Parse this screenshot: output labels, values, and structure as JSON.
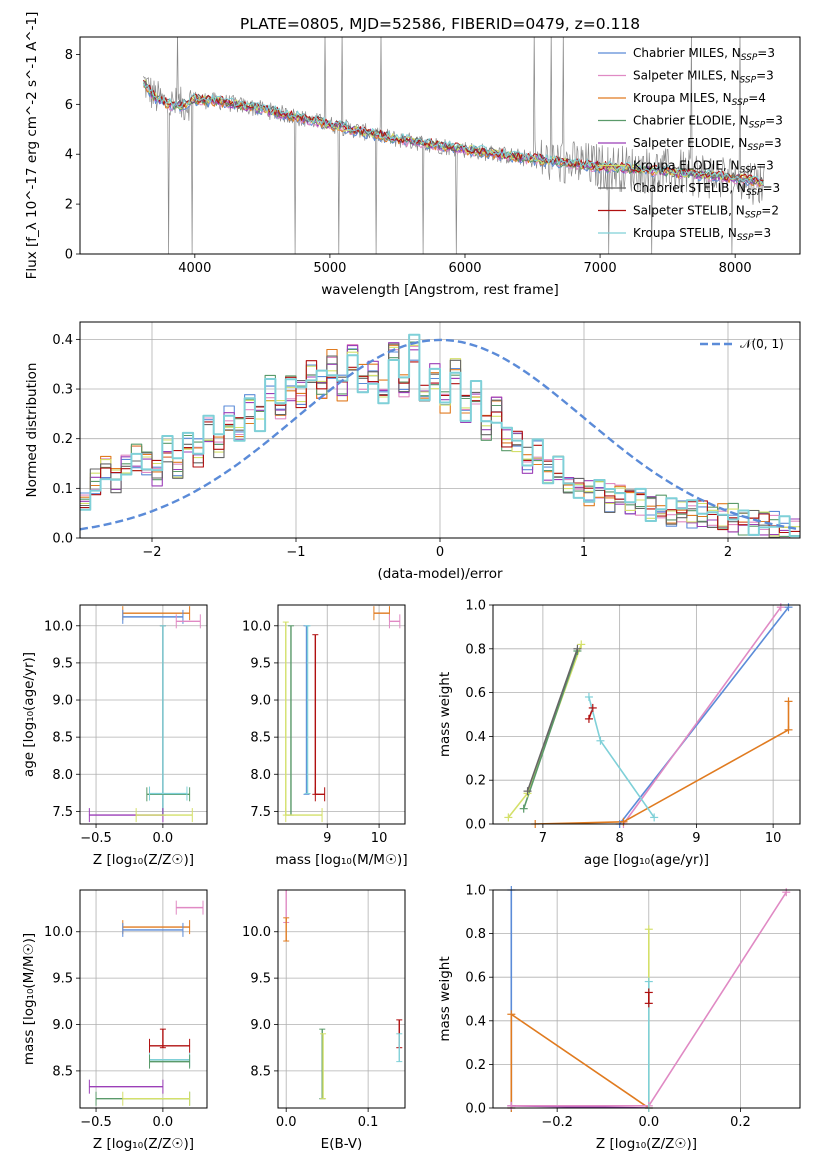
{
  "figure_title": "PLATE=0805, MJD=52586, FIBERID=0479, z=0.118",
  "colors": {
    "Chabrier MILES": "#5b8bd8",
    "Salpeter MILES": "#e08ac4",
    "Kroupa MILES": "#e07b20",
    "Chabrier ELODIE": "#5a9a6a",
    "Salpeter ELODIE": "#9b3fb8",
    "Kroupa ELODIE": "#d4e06a",
    "Chabrier STELIB": "#666666",
    "Salpeter STELIB": "#b01010",
    "Kroupa STELIB": "#7fd0d8"
  },
  "chart_data": [
    {
      "type": "line",
      "title": "PLATE=0805, MJD=52586, FIBERID=0479, z=0.118",
      "xlabel": "wavelength [Angstrom, rest frame]",
      "ylabel": "Flux [f_λ 10^-17 erg cm^-2 s^-1 A^-1]",
      "xlim": [
        3150,
        8480
      ],
      "ylim": [
        0,
        8.7
      ],
      "xticks": [
        4000,
        5000,
        6000,
        7000,
        8000
      ],
      "yticks": [
        0,
        2,
        4,
        6,
        8
      ],
      "grid": false,
      "legend_position": "top-right",
      "continuum": {
        "x": [
          3620,
          3700,
          3800,
          3900,
          4000,
          4200,
          4500,
          5000,
          5500,
          6000,
          6500,
          7000,
          7500,
          8000,
          8220
        ],
        "y": [
          6.9,
          6.3,
          6.0,
          5.95,
          6.2,
          6.1,
          5.8,
          5.2,
          4.6,
          4.2,
          3.8,
          3.5,
          3.3,
          3.05,
          2.85
        ]
      },
      "series": [
        {
          "name": "Chabrier MILES",
          "nssp": "3"
        },
        {
          "name": "Salpeter MILES",
          "nssp": "3"
        },
        {
          "name": "Kroupa MILES",
          "nssp": "4"
        },
        {
          "name": "Chabrier ELODIE",
          "nssp": "3"
        },
        {
          "name": "Salpeter ELODIE",
          "nssp": "3"
        },
        {
          "name": "Kroupa ELODIE",
          "nssp": "3"
        },
        {
          "name": "Chabrier STELIB",
          "nssp": "3"
        },
        {
          "name": "Salpeter STELIB",
          "nssp": "2"
        },
        {
          "name": "Kroupa STELIB",
          "nssp": "3"
        }
      ]
    },
    {
      "type": "line",
      "xlabel": "(data-model)/error",
      "ylabel": "Normed distribution",
      "xlim": [
        -2.5,
        2.5
      ],
      "ylim": [
        0,
        0.435
      ],
      "xticks": [
        -2,
        -1,
        0,
        1,
        2
      ],
      "yticks": [
        0.0,
        0.1,
        0.2,
        0.3,
        0.4
      ],
      "grid": true,
      "legend_position": "top-right",
      "gaussian": {
        "name": "N(0,1)",
        "mean": 0,
        "sigma": 1
      },
      "histogram_bin_width": 0.1,
      "histogram_base": [
        0.07,
        0.11,
        0.14,
        0.12,
        0.15,
        0.16,
        0.15,
        0.13,
        0.18,
        0.15,
        0.2,
        0.17,
        0.22,
        0.19,
        0.24,
        0.22,
        0.26,
        0.24,
        0.3,
        0.26,
        0.3,
        0.29,
        0.33,
        0.31,
        0.35,
        0.3,
        0.36,
        0.32,
        0.34,
        0.3,
        0.37,
        0.31,
        0.38,
        0.29,
        0.33,
        0.27,
        0.34,
        0.26,
        0.29,
        0.22,
        0.26,
        0.2,
        0.19,
        0.16,
        0.17,
        0.13,
        0.14,
        0.11,
        0.1,
        0.09,
        0.1,
        0.08,
        0.09,
        0.07,
        0.07,
        0.06,
        0.07,
        0.05,
        0.05,
        0.05,
        0.05,
        0.04,
        0.04,
        0.04,
        0.03,
        0.03,
        0.03,
        0.03,
        0.02,
        0.02
      ]
    },
    {
      "type": "scatter",
      "xlabel": "Z [log10(Z/Z☉)]",
      "ylabel": "age [log10(age/yr)]",
      "xlim": [
        -0.62,
        0.33
      ],
      "ylim": [
        7.33,
        10.28
      ],
      "xticks": [
        -0.5,
        0.0
      ],
      "yticks": [
        7.5,
        8.0,
        8.5,
        9.0,
        9.5,
        10.0
      ],
      "grid": true,
      "segments": [
        {
          "series": "Kroupa MILES",
          "x": [
            -0.3,
            0.2
          ],
          "y": [
            10.17,
            10.17
          ]
        },
        {
          "series": "Chabrier MILES",
          "x": [
            -0.3,
            0.15
          ],
          "y": [
            10.12,
            10.12
          ]
        },
        {
          "series": "Salpeter MILES",
          "x": [
            0.1,
            0.28
          ],
          "y": [
            10.06,
            10.06
          ]
        },
        {
          "series": "Chabrier STELIB",
          "x": [
            0.0,
            0.0
          ],
          "y": [
            7.45,
            10.0
          ]
        },
        {
          "series": "Kroupa STELIB",
          "x": [
            0.0,
            0.0
          ],
          "y": [
            7.45,
            10.0
          ]
        },
        {
          "series": "Chabrier ELODIE",
          "x": [
            -0.12,
            0.2
          ],
          "y": [
            7.73,
            7.73
          ]
        },
        {
          "series": "Kroupa STELIB",
          "x": [
            -0.1,
            0.18
          ],
          "y": [
            7.74,
            7.74
          ]
        },
        {
          "series": "Salpeter ELODIE",
          "x": [
            -0.55,
            0.0
          ],
          "y": [
            7.45,
            7.45
          ]
        },
        {
          "series": "Kroupa ELODIE",
          "x": [
            -0.2,
            0.22
          ],
          "y": [
            7.45,
            7.45
          ]
        }
      ]
    },
    {
      "type": "scatter",
      "xlabel": "mass [log10(M/M☉)]",
      "ylabel": "",
      "xlim": [
        8.05,
        10.5
      ],
      "ylim": [
        7.33,
        10.28
      ],
      "xticks": [
        9,
        10
      ],
      "yticks": [
        7.5,
        8.0,
        8.5,
        9.0,
        9.5,
        10.0
      ],
      "grid": true,
      "segments": [
        {
          "series": "Kroupa ELODIE",
          "x": [
            8.2,
            8.2
          ],
          "y": [
            7.45,
            10.05
          ]
        },
        {
          "series": "Chabrier ELODIE",
          "x": [
            8.3,
            8.3
          ],
          "y": [
            7.45,
            10.0
          ]
        },
        {
          "series": "Kroupa ELODIE",
          "x": [
            8.2,
            8.9
          ],
          "y": [
            7.45,
            7.45
          ]
        },
        {
          "series": "Chabrier MILES",
          "x": [
            8.6,
            8.6
          ],
          "y": [
            7.73,
            10.0
          ]
        },
        {
          "series": "Kroupa STELIB",
          "x": [
            8.62,
            8.62
          ],
          "y": [
            7.74,
            10.0
          ]
        },
        {
          "series": "Salpeter STELIB",
          "x": [
            8.77,
            8.77
          ],
          "y": [
            7.73,
            9.88
          ]
        },
        {
          "series": "Salpeter STELIB",
          "x": [
            8.77,
            8.95
          ],
          "y": [
            7.73,
            7.73
          ]
        },
        {
          "series": "Kroupa MILES",
          "x": [
            9.9,
            10.2
          ],
          "y": [
            10.17,
            10.17
          ]
        },
        {
          "series": "Salpeter MILES",
          "x": [
            10.2,
            10.4
          ],
          "y": [
            10.06,
            10.06
          ]
        }
      ]
    },
    {
      "type": "line",
      "xlabel": "age [log10(age/yr)]",
      "ylabel": "mass weight",
      "xlim": [
        6.35,
        10.35
      ],
      "ylim": [
        0,
        1.0
      ],
      "xticks": [
        7,
        8,
        9,
        10
      ],
      "yticks": [
        0.0,
        0.2,
        0.4,
        0.6,
        0.8,
        1.0
      ],
      "grid": true,
      "series": [
        {
          "name": "Chabrier MILES",
          "x": [
            8.0,
            10.2
          ],
          "y": [
            0.0,
            0.99
          ]
        },
        {
          "name": "Salpeter MILES",
          "x": [
            8.05,
            10.1
          ],
          "y": [
            0.0,
            0.99
          ]
        },
        {
          "name": "Kroupa MILES",
          "x": [
            6.9,
            8.05,
            10.2,
            10.2
          ],
          "y": [
            0.0,
            0.01,
            0.43,
            0.56
          ]
        },
        {
          "name": "Kroupa ELODIE",
          "x": [
            6.55,
            6.8,
            7.5
          ],
          "y": [
            0.03,
            0.14,
            0.82
          ]
        },
        {
          "name": "Chabrier ELODIE",
          "x": [
            6.75,
            7.45
          ],
          "y": [
            0.07,
            0.79
          ]
        },
        {
          "name": "Chabrier STELIB",
          "x": [
            6.8,
            7.45
          ],
          "y": [
            0.15,
            0.8
          ]
        },
        {
          "name": "Salpeter STELIB",
          "x": [
            7.6,
            7.65
          ],
          "y": [
            0.48,
            0.53
          ]
        },
        {
          "name": "Kroupa STELIB",
          "x": [
            7.6,
            7.75,
            8.45
          ],
          "y": [
            0.58,
            0.38,
            0.03
          ]
        }
      ]
    },
    {
      "type": "scatter",
      "xlabel": "Z [log10(Z/Z☉)]",
      "ylabel": "mass [log10(M/M☉)]",
      "xlim": [
        -0.62,
        0.33
      ],
      "ylim": [
        8.1,
        10.45
      ],
      "xticks": [
        -0.5,
        0.0
      ],
      "yticks": [
        8.5,
        9.0,
        9.5,
        10.0
      ],
      "grid": true,
      "segments": [
        {
          "series": "Salpeter MILES",
          "x": [
            0.1,
            0.3
          ],
          "y": [
            10.26,
            10.26
          ]
        },
        {
          "series": "Kroupa MILES",
          "x": [
            -0.3,
            0.2
          ],
          "y": [
            10.05,
            10.05
          ]
        },
        {
          "series": "Chabrier MILES",
          "x": [
            -0.3,
            0.15
          ],
          "y": [
            10.02,
            10.02
          ]
        },
        {
          "series": "Salpeter STELIB",
          "x": [
            0.0,
            0.0
          ],
          "y": [
            8.75,
            8.95
          ]
        },
        {
          "series": "Salpeter STELIB",
          "x": [
            -0.1,
            0.2
          ],
          "y": [
            8.77,
            8.77
          ]
        },
        {
          "series": "Kroupa STELIB",
          "x": [
            -0.1,
            0.2
          ],
          "y": [
            8.62,
            8.62
          ]
        },
        {
          "series": "Chabrier ELODIE",
          "x": [
            -0.1,
            0.2
          ],
          "y": [
            8.6,
            8.6
          ]
        },
        {
          "series": "Salpeter ELODIE",
          "x": [
            -0.55,
            0.0
          ],
          "y": [
            8.33,
            8.33
          ]
        },
        {
          "series": "Chabrier ELODIE",
          "x": [
            -0.5,
            0.2
          ],
          "y": [
            8.2,
            8.2
          ]
        },
        {
          "series": "Kroupa ELODIE",
          "x": [
            -0.3,
            0.2
          ],
          "y": [
            8.2,
            8.2
          ]
        }
      ]
    },
    {
      "type": "scatter",
      "xlabel": "E(B-V)",
      "ylabel": "",
      "xlim": [
        -0.01,
        0.145
      ],
      "ylim": [
        8.1,
        10.45
      ],
      "xticks": [
        0.0,
        0.1
      ],
      "yticks": [
        8.5,
        9.0,
        9.5,
        10.0
      ],
      "grid": true,
      "segments": [
        {
          "series": "Salpeter MILES",
          "x": [
            0.0,
            0.0
          ],
          "y": [
            10.1,
            10.45
          ]
        },
        {
          "series": "Kroupa MILES",
          "x": [
            0.0,
            0.0
          ],
          "y": [
            9.9,
            10.15
          ]
        },
        {
          "series": "Chabrier ELODIE",
          "x": [
            0.044,
            0.044
          ],
          "y": [
            8.2,
            8.95
          ]
        },
        {
          "series": "Kroupa ELODIE",
          "x": [
            0.045,
            0.045
          ],
          "y": [
            8.2,
            8.9
          ]
        },
        {
          "series": "Salpeter STELIB",
          "x": [
            0.138,
            0.138
          ],
          "y": [
            8.75,
            9.05
          ]
        },
        {
          "series": "Kroupa STELIB",
          "x": [
            0.138,
            0.138
          ],
          "y": [
            8.6,
            8.9
          ]
        }
      ]
    },
    {
      "type": "line",
      "xlabel": "Z [log10(Z/Z☉)]",
      "ylabel": "mass weight",
      "xlim": [
        -0.34,
        0.33
      ],
      "ylim": [
        0,
        1.0
      ],
      "xticks": [
        -0.2,
        0.0,
        0.2
      ],
      "yticks": [
        0.0,
        0.2,
        0.4,
        0.6,
        0.8,
        1.0
      ],
      "grid": true,
      "series": [
        {
          "name": "Chabrier MILES",
          "x": [
            -0.3,
            -0.3
          ],
          "y": [
            0.0,
            1.0
          ]
        },
        {
          "name": "Kroupa MILES",
          "x": [
            -0.3,
            -0.3,
            0.0
          ],
          "y": [
            0.0,
            0.43,
            0.0
          ]
        },
        {
          "name": "Salpeter ELODIE",
          "x": [
            -0.3,
            0.0
          ],
          "y": [
            0.01,
            0.0
          ]
        },
        {
          "name": "Salpeter MILES",
          "x": [
            -0.3,
            0.0,
            0.3
          ],
          "y": [
            0.01,
            0.01,
            0.99
          ]
        },
        {
          "name": "Kroupa ELODIE",
          "x": [
            0.0,
            0.0
          ],
          "y": [
            0.0,
            0.82
          ]
        },
        {
          "name": "Kroupa STELIB",
          "x": [
            0.0,
            0.0
          ],
          "y": [
            0.0,
            0.58
          ]
        },
        {
          "name": "Salpeter STELIB",
          "x": [
            0.0,
            0.0
          ],
          "y": [
            0.48,
            0.53
          ]
        }
      ]
    }
  ]
}
